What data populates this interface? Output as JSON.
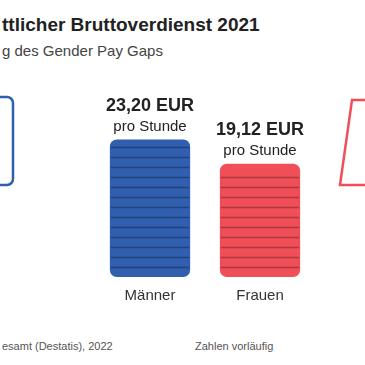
{
  "chart_data": {
    "type": "bar",
    "title": "ttlicher Bruttoverdienst 2021",
    "subtitle": "g des Gender Pay Gaps",
    "categories": [
      "Männer",
      "Frauen"
    ],
    "values": [
      23.2,
      19.12
    ],
    "value_labels": [
      [
        "23,20 EUR",
        "pro Stunde"
      ],
      [
        "19,12 EUR",
        "pro Stunde"
      ]
    ],
    "colors": [
      "#2f5fae",
      "#f04f58"
    ],
    "ylim": [
      0,
      40
    ],
    "grid": false,
    "data_labels": true,
    "tick_labels": "x",
    "source": "esamt (Destatis), 2022",
    "note": "Zahlen vorläufig"
  }
}
